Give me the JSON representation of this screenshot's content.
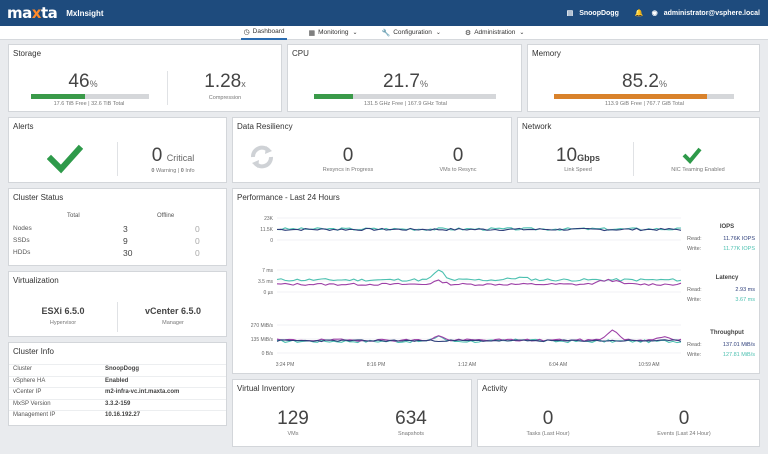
{
  "topbar": {
    "logo_a": "ma",
    "logo_b": "x",
    "logo_c": "ta",
    "app_name": "MxInsight",
    "cluster": "SnoopDogg",
    "user": "administrator@vsphere.local"
  },
  "nav": {
    "items": [
      {
        "label": "Dashboard"
      },
      {
        "label": "Monitoring"
      },
      {
        "label": "Configuration"
      },
      {
        "label": "Administration"
      }
    ]
  },
  "storage": {
    "title": "Storage",
    "value": "46",
    "unit": "%",
    "fraction": 0.46,
    "caption": "17.6 TiB Free | 32.6 TiB Total",
    "compression": "1.28",
    "compression_unit": "x",
    "compression_label": "Compression",
    "color": "#3a9a49"
  },
  "cpu": {
    "title": "CPU",
    "value": "21.7",
    "unit": "%",
    "fraction": 0.217,
    "caption": "131.5 GHz Free | 167.9 GHz Total",
    "color": "#3a9a49"
  },
  "memory": {
    "title": "Memory",
    "value": "85.2",
    "unit": "%",
    "fraction": 0.852,
    "caption": "113.9 GiB Free | 767.7 GiB Total",
    "color": "#d9822b"
  },
  "alerts": {
    "title": "Alerts",
    "critical": "0",
    "critical_label": "Critical",
    "warning": "0",
    "warning_label": "Warning",
    "info": "0",
    "info_label": "Info",
    "sep": "|"
  },
  "resiliency": {
    "title": "Data Resiliency",
    "resyncs": "0",
    "resyncs_label": "Resyncs in Progress",
    "vms": "0",
    "vms_label": "VMs to Resync"
  },
  "network": {
    "title": "Network",
    "speed": "10",
    "speed_unit": "Gbps",
    "speed_label": "Link Speed",
    "teaming_label": "NIC Teaming Enabled"
  },
  "cluster_status": {
    "title": "Cluster Status",
    "col_total": "Total",
    "col_offline": "Offline",
    "rows": [
      {
        "label": "Nodes",
        "total": "3",
        "offline": "0"
      },
      {
        "label": "SSDs",
        "total": "9",
        "offline": "0"
      },
      {
        "label": "HDDs",
        "total": "30",
        "offline": "0"
      }
    ]
  },
  "virtualization": {
    "title": "Virtualization",
    "esxi": "ESXi 6.5.0",
    "esxi_label": "Hypervisor",
    "vcenter": "vCenter 6.5.0",
    "vcenter_label": "Manager"
  },
  "cluster_info": {
    "title": "Cluster Info",
    "rows": [
      {
        "key": "Cluster",
        "value": "SnoopDogg"
      },
      {
        "key": "vSphere HA",
        "value": "Enabled"
      },
      {
        "key": "vCenter IP",
        "value": "m2-infra-vc.int.maxta.com"
      },
      {
        "key": "MxSP Version",
        "value": "3.3.2-159"
      },
      {
        "key": "Management IP",
        "value": "10.16.192.27"
      }
    ]
  },
  "performance": {
    "title": "Performance - Last 24 Hours",
    "x_ticks": [
      "3:24 PM",
      "8:16 PM",
      "1:12 AM",
      "6:04 AM",
      "10:59 AM"
    ],
    "iops": {
      "title": "IOPS",
      "y_ticks": [
        "23K",
        "11.5K",
        "0"
      ],
      "read_label": "Read:",
      "read": "11.76K IOPS",
      "write_label": "Write:",
      "write": "11.77K IOPS"
    },
    "latency": {
      "title": "Latency",
      "y_ticks": [
        "7 ms",
        "3.5 ms",
        "0 µs"
      ],
      "read_label": "Read:",
      "read": "2.93 ms",
      "write_label": "Write:",
      "write": "3.67 ms"
    },
    "throughput": {
      "title": "Throughput",
      "y_ticks": [
        "270 MiB/s",
        "135 MiB/s",
        "0 B/s"
      ],
      "read_label": "Read:",
      "read": "137.01 MiB/s",
      "write_label": "Write:",
      "write": "127.81 MiB/s"
    },
    "colors": {
      "read": "#2d3e7a",
      "write": "#4cc0b0",
      "other": "#9c3fa6"
    }
  },
  "inventory": {
    "title": "Virtual Inventory",
    "vms": "129",
    "vms_label": "VMs",
    "snapshots": "634",
    "snapshots_label": "Snapshots"
  },
  "activity": {
    "title": "Activity",
    "tasks": "0",
    "tasks_label": "Tasks (Last Hour)",
    "events": "0",
    "events_label": "Events (Last 24 Hour)"
  }
}
